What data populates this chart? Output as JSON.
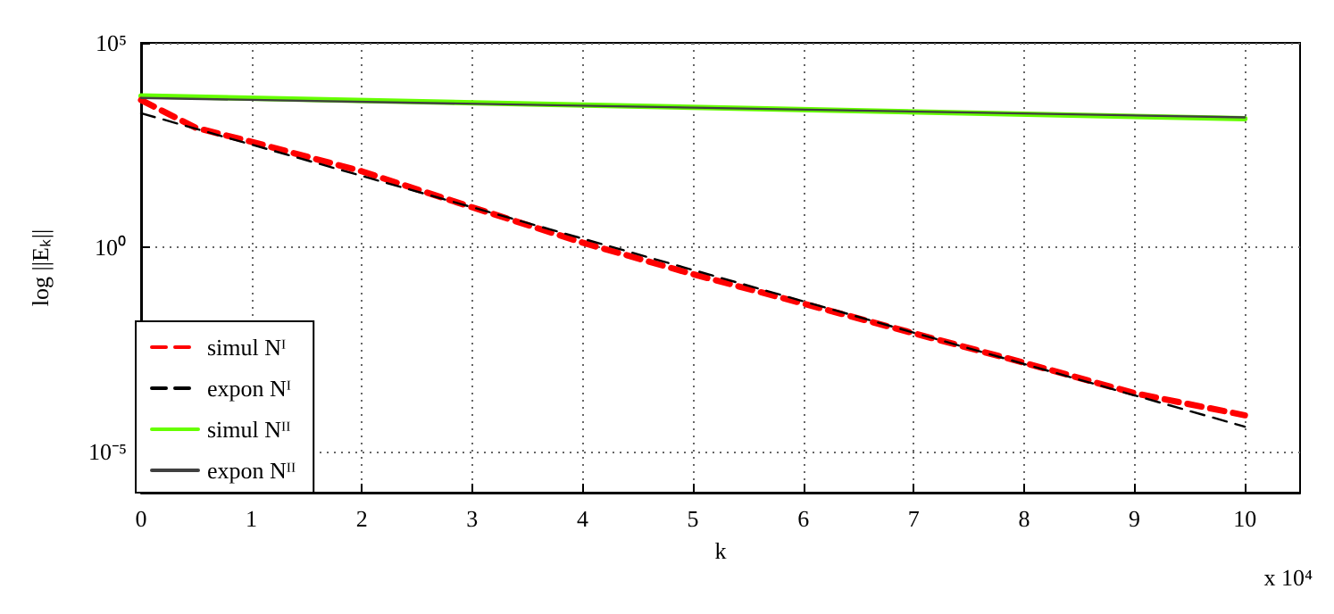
{
  "chart_data": {
    "type": "line",
    "xlabel": "k",
    "ylabel": "log ||Eₖ||",
    "annotations": [
      "x 10⁴"
    ],
    "xlim": [
      0,
      10.5
    ],
    "xticks": [
      0,
      1,
      2,
      3,
      4,
      5,
      6,
      7,
      8,
      9,
      10
    ],
    "ylim": [
      1e-06,
      100000
    ],
    "yticks": [
      {
        "value": 100000,
        "label": "10⁵"
      },
      {
        "value": 1,
        "label": "10⁰"
      },
      {
        "value": 1e-05,
        "label": "10⁻⁵"
      }
    ],
    "log": "y",
    "grid": true,
    "legend": "bottom left",
    "marker": "none",
    "series": [
      {
        "name": "simul Nᴵ",
        "color": "#ff0000",
        "line_style": "dashed",
        "x": [
          0,
          0.5,
          1,
          2,
          3,
          4,
          5,
          6,
          7,
          8,
          9,
          10
        ],
        "values": [
          4000,
          830,
          380,
          72,
          9.5,
          1.3,
          0.22,
          0.042,
          0.0079,
          0.0015,
          0.00027,
          7.8e-05
        ]
      },
      {
        "name": "expon Nᴵ",
        "color": "#000000",
        "line_style": "dashed",
        "x": [
          0,
          10
        ],
        "values": [
          1900,
          4.1e-05
        ]
      },
      {
        "name": "simul Nᴵᴵ",
        "color": "#66ff00",
        "line_style": "solid",
        "x": [
          0,
          10
        ],
        "values": [
          5000,
          1400
        ]
      },
      {
        "name": "expon Nᴵᴵ",
        "color": "#404040",
        "line_style": "solid",
        "x": [
          0,
          10
        ],
        "values": [
          4500,
          1500
        ]
      }
    ]
  }
}
